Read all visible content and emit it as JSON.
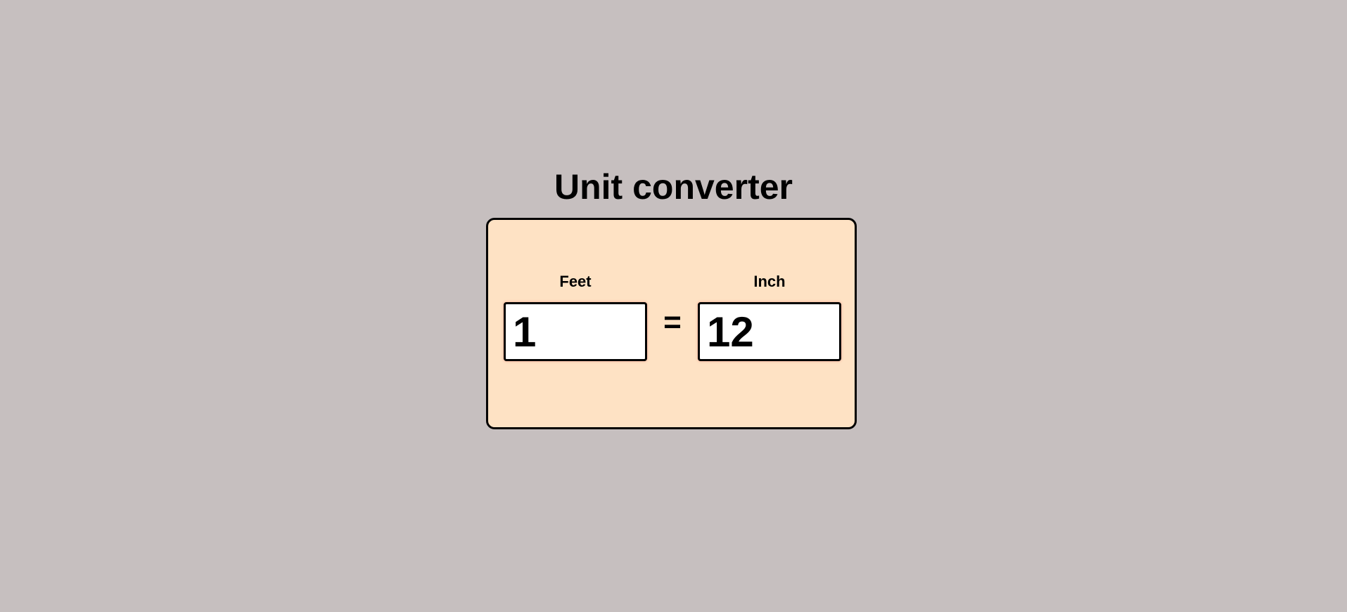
{
  "page": {
    "title": "Unit converter",
    "background_color": "#c6bfbf"
  },
  "converter": {
    "card_color": "#fee2c4",
    "from_unit": {
      "label": "Feet",
      "value": "1"
    },
    "equals_sign": "=",
    "to_unit": {
      "label": "Inch",
      "value": "12"
    }
  }
}
